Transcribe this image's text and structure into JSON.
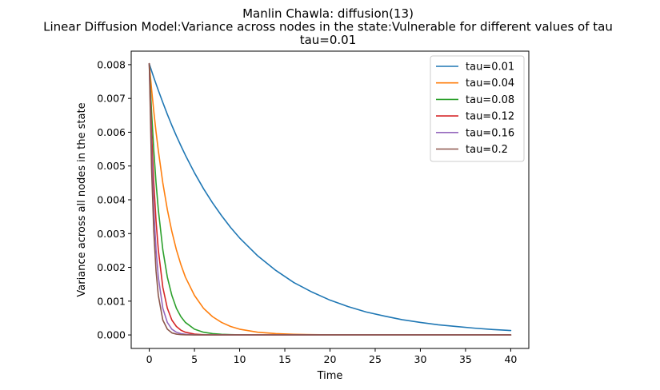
{
  "chart_data": {
    "type": "line",
    "title_lines": [
      "Manlin Chawla: diffusion(13)",
      "Linear Diffusion Model:Variance across nodes in the state:Vulnerable for different values of tau",
      "tau=0.01"
    ],
    "xlabel": "Time",
    "ylabel": "Variance across all nodes in the state",
    "xlim": [
      -2,
      42
    ],
    "ylim": [
      -0.0004,
      0.0084
    ],
    "x_ticks": [
      0,
      5,
      10,
      15,
      20,
      25,
      30,
      35,
      40
    ],
    "x_tick_labels": [
      "0",
      "5",
      "10",
      "15",
      "20",
      "25",
      "30",
      "35",
      "40"
    ],
    "y_ticks": [
      0,
      0.001,
      0.002,
      0.003,
      0.004,
      0.005,
      0.006,
      0.007,
      0.008
    ],
    "y_tick_labels": [
      "0.000",
      "0.001",
      "0.002",
      "0.003",
      "0.004",
      "0.005",
      "0.006",
      "0.007",
      "0.008"
    ],
    "grid": false,
    "legend_position": "top-right",
    "x": [
      0,
      0.25,
      0.5,
      0.75,
      1,
      1.5,
      2,
      2.5,
      3,
      3.5,
      4,
      5,
      6,
      7,
      8,
      9,
      10,
      12,
      14,
      16,
      18,
      20,
      22,
      24,
      26,
      28,
      30,
      32,
      34,
      36,
      38,
      40
    ],
    "series": [
      {
        "name": "tau=0.01",
        "color": "#1f77b4",
        "values": [
          0.00803,
          0.00782,
          0.00762,
          0.00743,
          0.00724,
          0.00688,
          0.00653,
          0.0062,
          0.00589,
          0.0056,
          0.00532,
          0.0048,
          0.00433,
          0.00391,
          0.00353,
          0.00318,
          0.00287,
          0.00234,
          0.00191,
          0.00155,
          0.00127,
          0.00103,
          0.00084,
          0.00068,
          0.00056,
          0.00045,
          0.00037,
          0.0003,
          0.00025,
          0.0002,
          0.00016,
          0.00013
        ]
      },
      {
        "name": "tau=0.04",
        "color": "#ff7f0e",
        "values": [
          0.00803,
          0.00729,
          0.00662,
          0.00601,
          0.00546,
          0.0045,
          0.00371,
          0.00306,
          0.00252,
          0.00208,
          0.00171,
          0.00117,
          0.00079,
          0.00054,
          0.00037,
          0.00025,
          0.00017,
          8e-05,
          4e-05,
          2e-05,
          1e-05,
          4e-06,
          2e-06,
          1e-06,
          0,
          0,
          0,
          0,
          0,
          0,
          0,
          0
        ]
      },
      {
        "name": "tau=0.08",
        "color": "#2ca02c",
        "values": [
          0.00803,
          0.00662,
          0.00546,
          0.0045,
          0.00371,
          0.00252,
          0.00171,
          0.00117,
          0.00079,
          0.00054,
          0.00037,
          0.00017,
          8e-05,
          4e-05,
          2e-05,
          1e-05,
          4e-06,
          1e-06,
          0,
          0,
          0,
          0,
          0,
          0,
          0,
          0,
          0,
          0,
          0,
          0,
          0,
          0
        ]
      },
      {
        "name": "tau=0.12",
        "color": "#d62728",
        "values": [
          0.00803,
          0.006,
          0.0045,
          0.00337,
          0.00252,
          0.00141,
          0.00079,
          0.00044,
          0.00025,
          0.00014,
          8e-05,
          2.4e-05,
          8e-06,
          2e-06,
          0,
          0,
          0,
          0,
          0,
          0,
          0,
          0,
          0,
          0,
          0,
          0,
          0,
          0,
          0,
          0,
          0,
          0
        ]
      },
      {
        "name": "tau=0.16",
        "color": "#9467bd",
        "values": [
          0.00803,
          0.00546,
          0.00371,
          0.00252,
          0.00171,
          0.00079,
          0.00037,
          0.00017,
          8e-05,
          4e-05,
          2e-05,
          4e-06,
          1e-06,
          0,
          0,
          0,
          0,
          0,
          0,
          0,
          0,
          0,
          0,
          0,
          0,
          0,
          0,
          0,
          0,
          0,
          0,
          0
        ]
      },
      {
        "name": "tau=0.2",
        "color": "#8c564b",
        "values": [
          0.00803,
          0.00496,
          0.00306,
          0.00189,
          0.00117,
          0.00044,
          0.00017,
          6e-05,
          2.4e-05,
          9e-06,
          3e-06,
          0,
          0,
          0,
          0,
          0,
          0,
          0,
          0,
          0,
          0,
          0,
          0,
          0,
          0,
          0,
          0,
          0,
          0,
          0,
          0,
          0
        ]
      }
    ]
  }
}
